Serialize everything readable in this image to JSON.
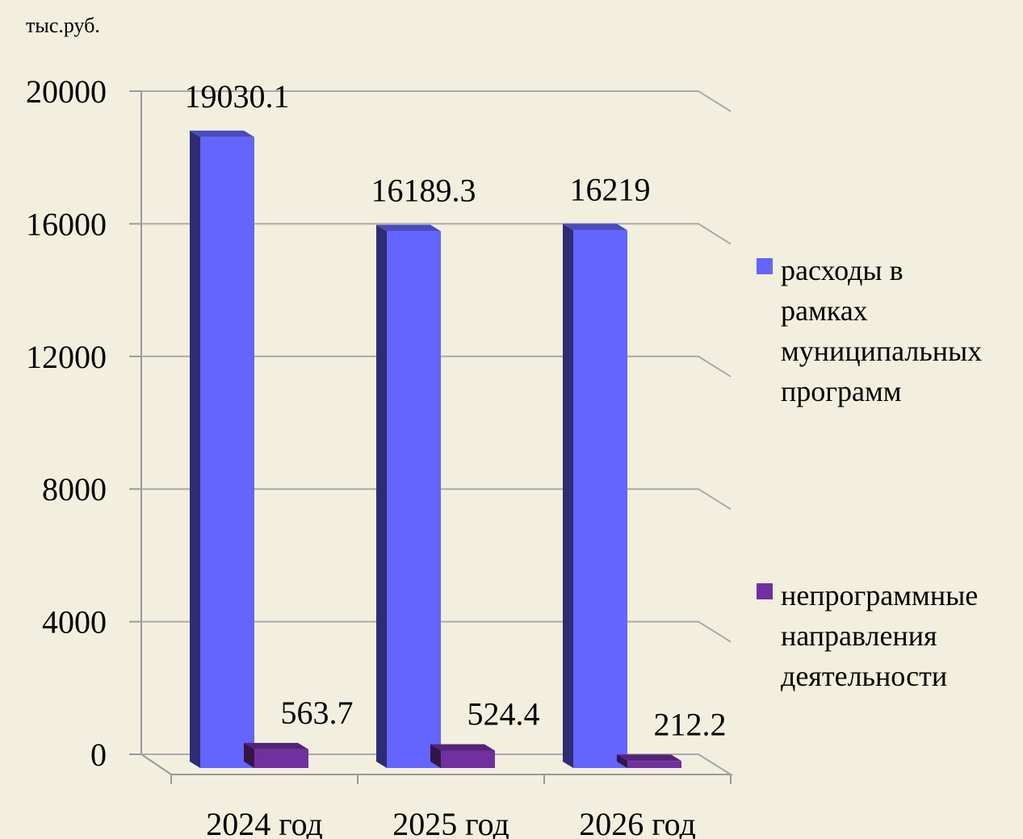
{
  "chart_data": {
    "type": "bar3d",
    "unit_label": "тыс.руб.",
    "categories": [
      "2024 год",
      "2025 год",
      "2026 год"
    ],
    "series": [
      {
        "name": "расходы в рамках муниципальных программ",
        "color": "#6464ff",
        "values": [
          19030.1,
          16189.3,
          16219
        ]
      },
      {
        "name": "непрограммные направления деятельности",
        "color": "#7030a0",
        "values": [
          563.7,
          524.4,
          212.2
        ]
      }
    ],
    "ylim": [
      0,
      20000
    ],
    "yticks": [
      0,
      4000,
      8000,
      12000,
      16000,
      20000
    ],
    "grid": true,
    "legend": "right"
  }
}
